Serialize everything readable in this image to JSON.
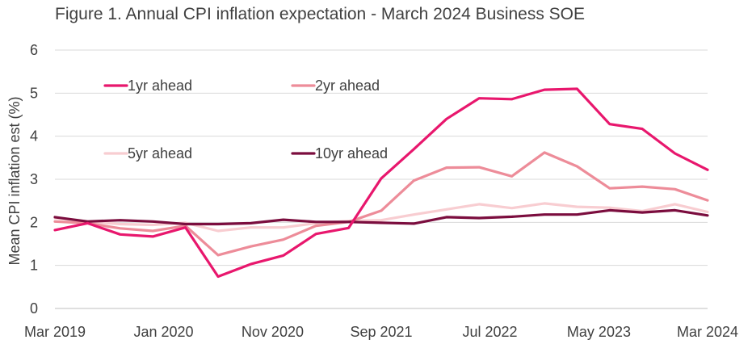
{
  "chart_data": {
    "type": "line",
    "title": "Figure 1. Annual CPI inflation expectation - March 2024 Business SOE",
    "xlabel": "",
    "ylabel": "Mean CPI inflation est (%)",
    "ylim": [
      0,
      6
    ],
    "yticks": [
      0,
      1,
      2,
      3,
      4,
      5,
      6
    ],
    "grid": true,
    "legend_position": "upper-left",
    "categories": [
      "Mar 2019",
      "Jun 2019",
      "Sep 2019",
      "Dec 2019",
      "Mar 2020",
      "Jun 2020",
      "Sep 2020",
      "Dec 2020",
      "Mar 2021",
      "Jun 2021",
      "Sep 2021",
      "Dec 2021",
      "Mar 2022",
      "Jun 2022",
      "Sep 2022",
      "Dec 2022",
      "Mar 2023",
      "Jun 2023",
      "Sep 2023",
      "Dec 2023",
      "Mar 2024"
    ],
    "x_tick_labels": [
      "Mar 2019",
      "Jan 2020",
      "Nov 2020",
      "Sep 2021",
      "Jul 2022",
      "May 2023",
      "Mar 2024"
    ],
    "x_tick_indices": [
      0,
      3.33,
      6.67,
      10,
      13.33,
      16.67,
      20
    ],
    "series": [
      {
        "name": "1yr ahead",
        "color": "#e8176d",
        "values": [
          1.82,
          1.98,
          1.72,
          1.67,
          1.88,
          0.74,
          1.03,
          1.23,
          1.73,
          1.87,
          3.02,
          3.7,
          4.4,
          4.88,
          4.86,
          5.08,
          5.1,
          4.28,
          4.17,
          3.6,
          3.22
        ]
      },
      {
        "name": "2yr ahead",
        "color": "#ed8c99",
        "values": [
          2.02,
          1.98,
          1.86,
          1.8,
          1.92,
          1.24,
          1.44,
          1.6,
          1.92,
          2.01,
          2.27,
          2.97,
          3.27,
          3.28,
          3.07,
          3.62,
          3.3,
          2.79,
          2.83,
          2.77,
          2.51
        ]
      },
      {
        "name": "5yr ahead",
        "color": "#f8cdd1",
        "values": [
          2.1,
          2.02,
          1.96,
          1.94,
          1.99,
          1.8,
          1.88,
          1.88,
          1.98,
          2.03,
          2.05,
          2.18,
          2.3,
          2.42,
          2.33,
          2.44,
          2.36,
          2.34,
          2.26,
          2.42,
          2.24
        ]
      },
      {
        "name": "10yr ahead",
        "color": "#7b0d3e",
        "values": [
          2.12,
          2.02,
          2.05,
          2.02,
          1.96,
          1.96,
          1.98,
          2.06,
          2.01,
          2.01,
          1.99,
          1.97,
          2.12,
          2.1,
          2.13,
          2.18,
          2.18,
          2.28,
          2.23,
          2.28,
          2.16
        ]
      }
    ]
  }
}
